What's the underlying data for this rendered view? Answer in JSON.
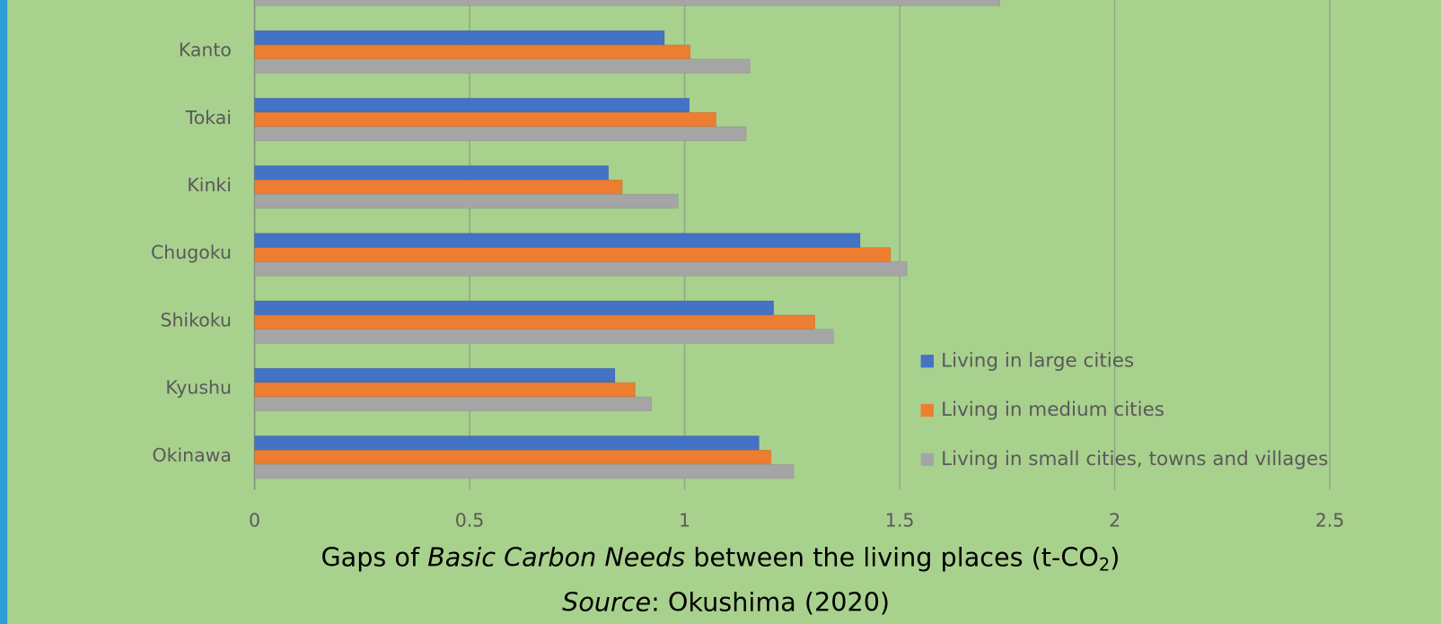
{
  "chart_data": {
    "type": "barh",
    "categories": [
      null,
      "Kanto",
      "Tokai",
      "Kinki",
      "Chugoku",
      "Shikoku",
      "Kyushu",
      "Okinawa"
    ],
    "series": [
      {
        "name": "Living in large cities",
        "color": "#4472c4",
        "values": [
          null,
          0.953,
          1.011,
          0.823,
          1.408,
          1.207,
          0.838,
          1.173
        ]
      },
      {
        "name": "Living in medium cities",
        "color": "#ed7d31",
        "values": [
          null,
          1.013,
          1.073,
          0.855,
          1.479,
          1.303,
          0.885,
          1.201
        ]
      },
      {
        "name": "Living in small cities, towns and villages",
        "color": "#a5a5a5",
        "values": [
          1.733,
          1.152,
          1.143,
          0.985,
          1.517,
          1.346,
          0.923,
          1.254
        ]
      }
    ],
    "xlim": [
      0,
      2.5
    ],
    "xticks": [
      0,
      0.5,
      1,
      1.5,
      2,
      2.5
    ],
    "grid": true,
    "legend_position": "right",
    "xlabel_parts": [
      "Gaps of ",
      "Basic Carbon Needs",
      " between the living places (t-CO",
      "2",
      ")"
    ],
    "source_parts": [
      "Source",
      ": Okushima (2020)"
    ]
  }
}
